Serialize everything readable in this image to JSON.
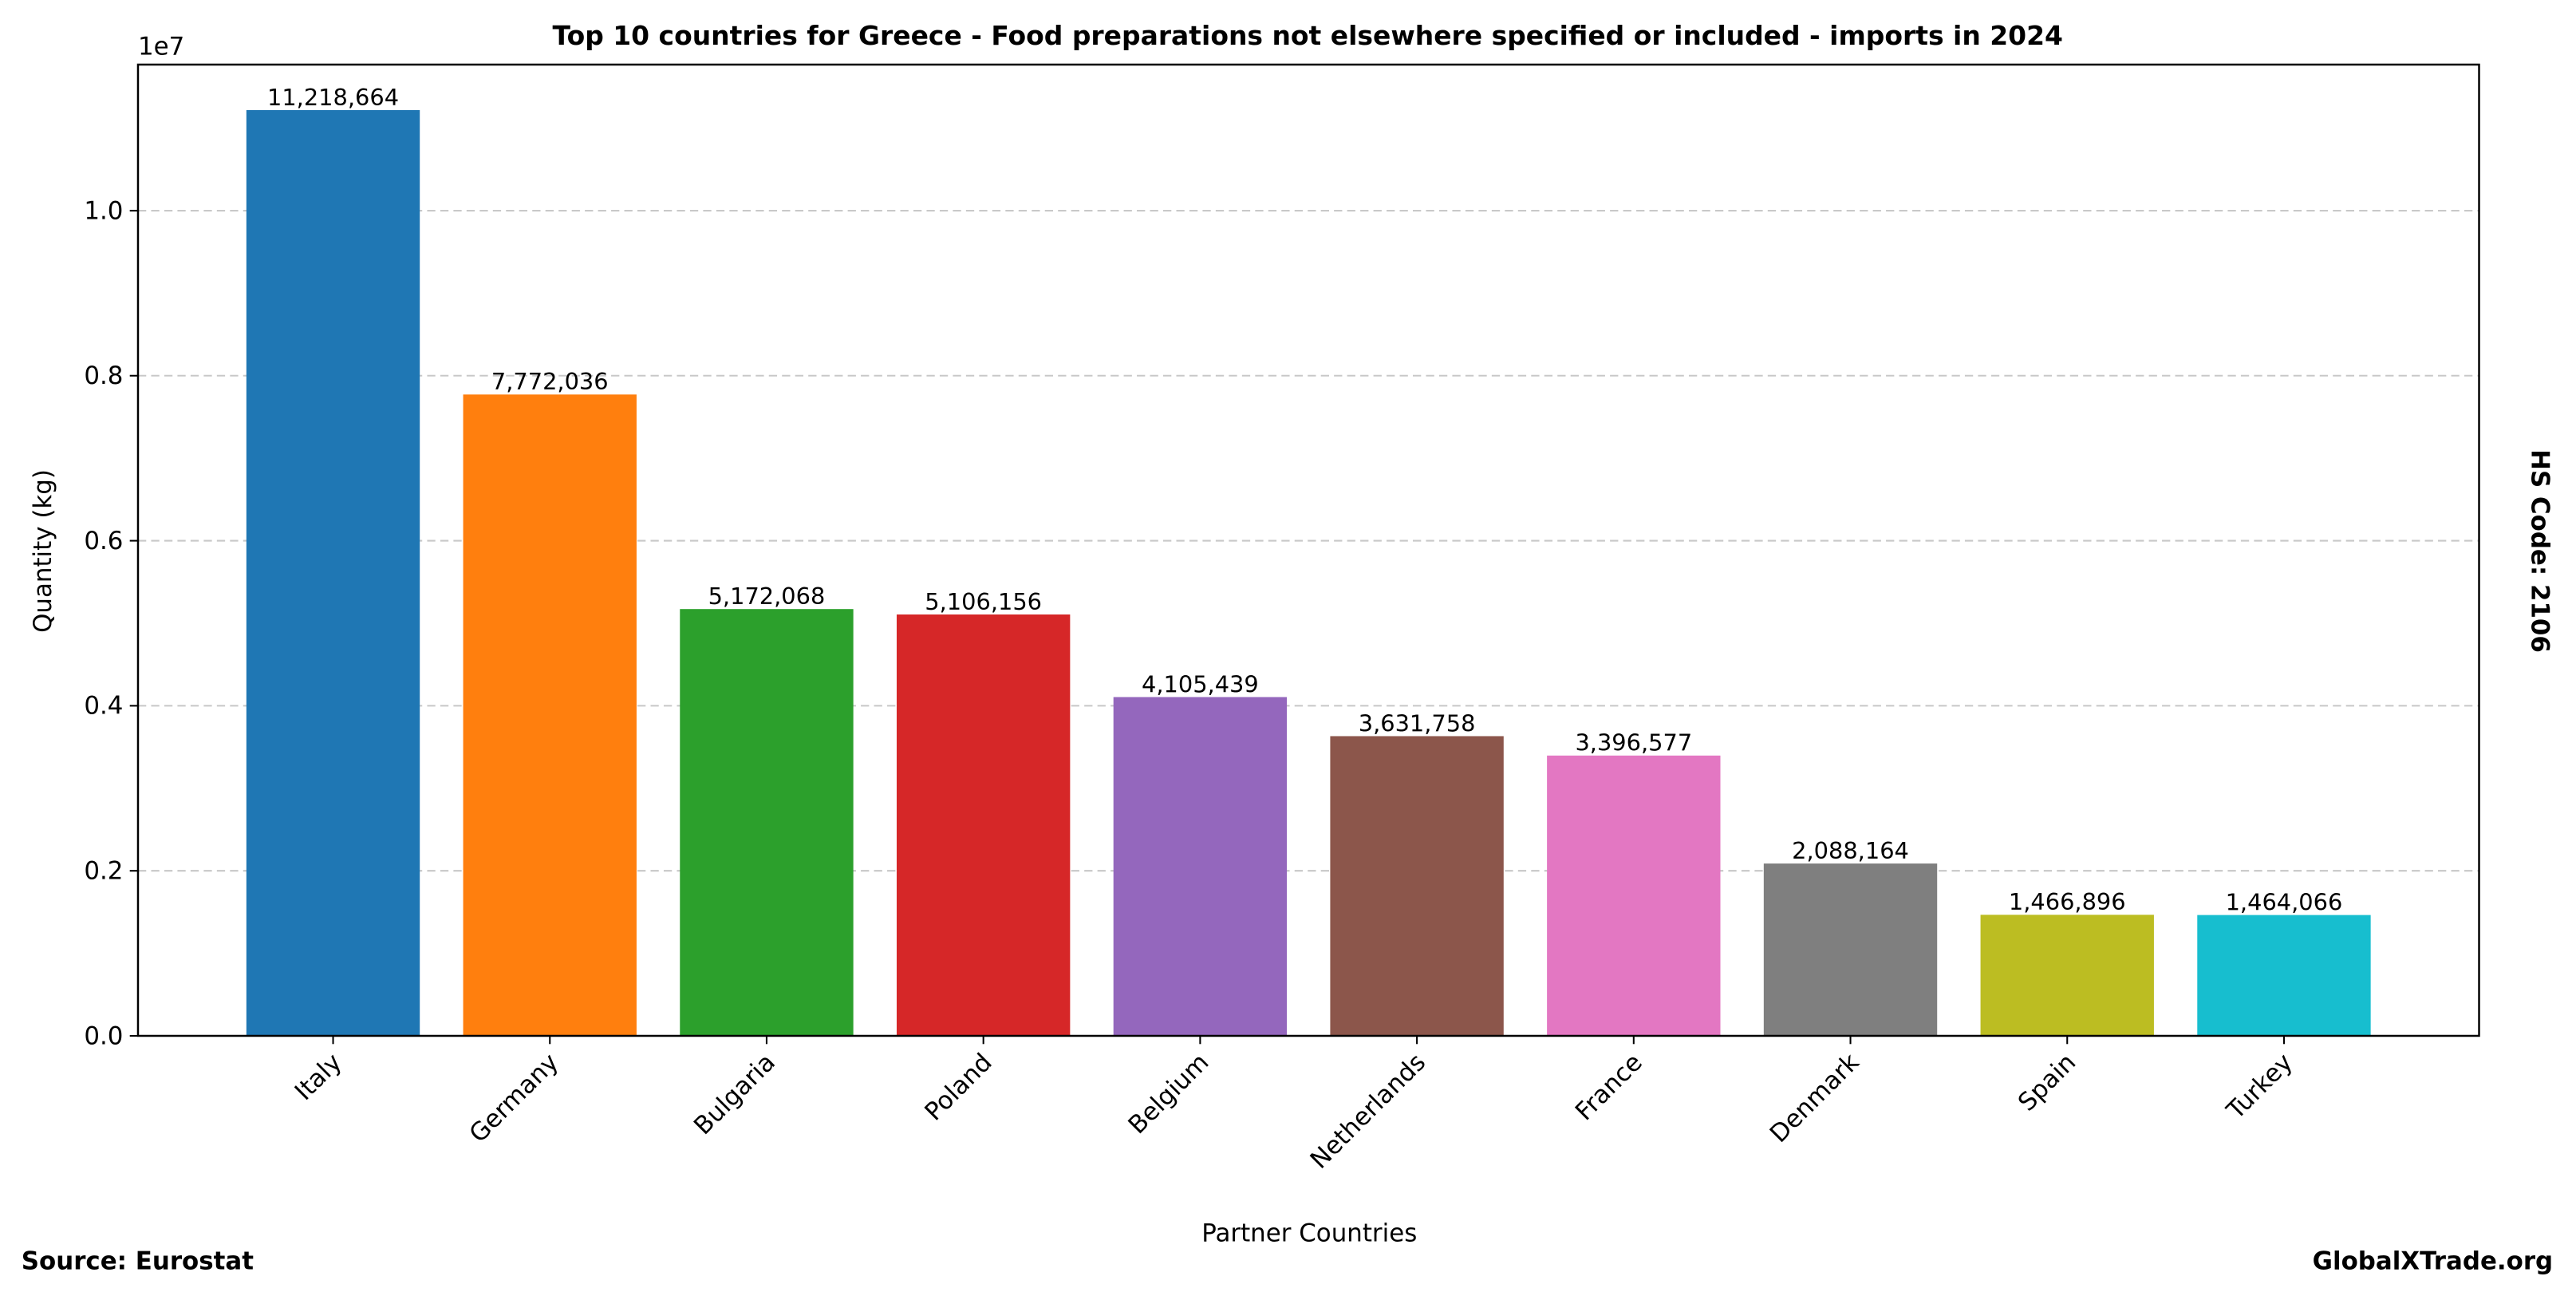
{
  "chart_data": {
    "type": "bar",
    "title": "Top 10 countries for Greece - Food preparations not elsewhere specified or included - imports in 2024",
    "xlabel": "Partner Countries",
    "ylabel": "Quantity (kg)",
    "y_offset_label": "1e7",
    "ylim": [
      0,
      11770000
    ],
    "yticks": [
      0,
      2000000,
      4000000,
      6000000,
      8000000,
      10000000
    ],
    "ytick_labels": [
      "0.0",
      "0.2",
      "0.4",
      "0.6",
      "0.8",
      "1.0"
    ],
    "grid": "y-dashed",
    "categories": [
      "Italy",
      "Germany",
      "Bulgaria",
      "Poland",
      "Belgium",
      "Netherlands",
      "France",
      "Denmark",
      "Spain",
      "Turkey"
    ],
    "values": [
      11218664,
      7772036,
      5172068,
      5106156,
      4105439,
      3631758,
      3396577,
      2088164,
      1466896,
      1464066
    ],
    "data_labels": [
      "11,218,664",
      "7,772,036",
      "5,172,068",
      "5,106,156",
      "4,105,439",
      "3,631,758",
      "3,396,577",
      "2,088,164",
      "1,466,896",
      "1,464,066"
    ],
    "colors": [
      "#1f77b4",
      "#ff7f0e",
      "#2ca02c",
      "#d62728",
      "#9467bd",
      "#8c564b",
      "#e377c2",
      "#7f7f7f",
      "#bcbd22",
      "#17becf"
    ]
  },
  "side_label": "HS Code: 2106",
  "source": "Source: Eurostat",
  "brand": "GlobalXTrade.org"
}
